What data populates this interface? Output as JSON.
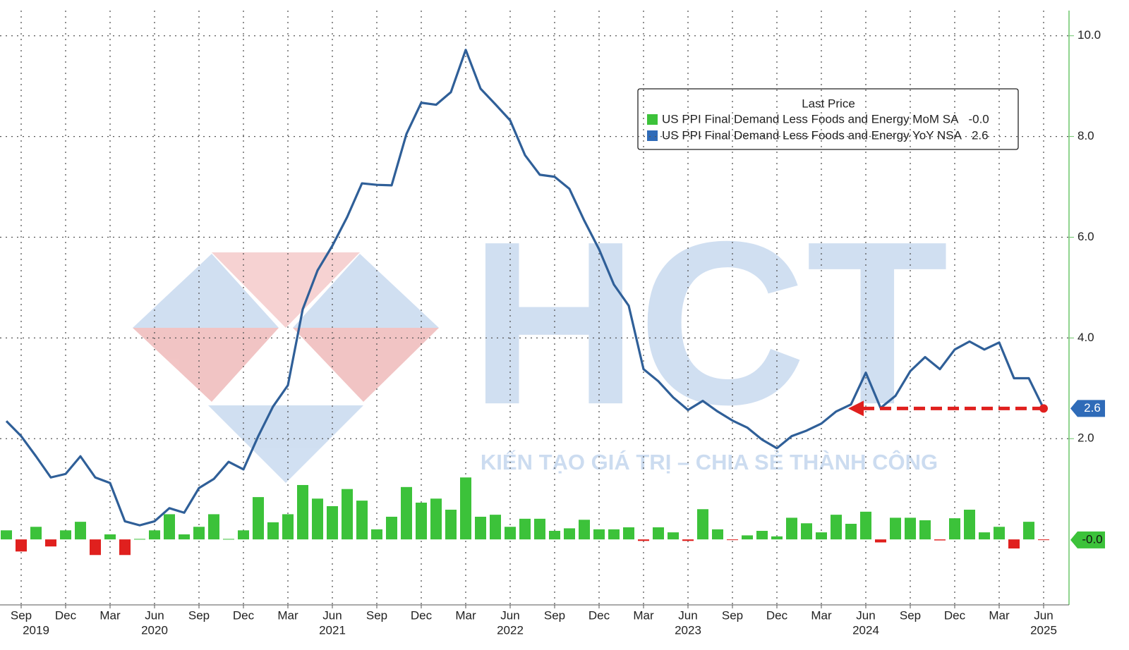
{
  "chart_data": {
    "type": "bar-line",
    "x": [
      "2019-08",
      "2019-09",
      "2019-10",
      "2019-11",
      "2019-12",
      "2020-01",
      "2020-02",
      "2020-03",
      "2020-04",
      "2020-05",
      "2020-06",
      "2020-07",
      "2020-08",
      "2020-09",
      "2020-10",
      "2020-11",
      "2020-12",
      "2021-01",
      "2021-02",
      "2021-03",
      "2021-04",
      "2021-05",
      "2021-06",
      "2021-07",
      "2021-08",
      "2021-09",
      "2021-10",
      "2021-11",
      "2021-12",
      "2022-01",
      "2022-02",
      "2022-03",
      "2022-04",
      "2022-05",
      "2022-06",
      "2022-07",
      "2022-08",
      "2022-09",
      "2022-10",
      "2022-11",
      "2022-12",
      "2023-01",
      "2023-02",
      "2023-03",
      "2023-04",
      "2023-05",
      "2023-06",
      "2023-07",
      "2023-08",
      "2023-09",
      "2023-10",
      "2023-11",
      "2023-12",
      "2024-01",
      "2024-02",
      "2024-03",
      "2024-04",
      "2024-05",
      "2024-06",
      "2024-07",
      "2024-08",
      "2024-09",
      "2024-10",
      "2024-11",
      "2024-12",
      "2025-01",
      "2025-02",
      "2025-03",
      "2025-04",
      "2025-05",
      "2025-06"
    ],
    "xticks": [
      {
        "value": "2019-09",
        "label": "Sep"
      },
      {
        "value": "2019-12",
        "label": "Dec"
      },
      {
        "value": "2020-03",
        "label": "Mar"
      },
      {
        "value": "2020-06",
        "label": "Jun"
      },
      {
        "value": "2020-09",
        "label": "Sep"
      },
      {
        "value": "2020-12",
        "label": "Dec"
      },
      {
        "value": "2021-03",
        "label": "Mar"
      },
      {
        "value": "2021-06",
        "label": "Jun"
      },
      {
        "value": "2021-09",
        "label": "Sep"
      },
      {
        "value": "2021-12",
        "label": "Dec"
      },
      {
        "value": "2022-03",
        "label": "Mar"
      },
      {
        "value": "2022-06",
        "label": "Jun"
      },
      {
        "value": "2022-09",
        "label": "Sep"
      },
      {
        "value": "2022-12",
        "label": "Dec"
      },
      {
        "value": "2023-03",
        "label": "Mar"
      },
      {
        "value": "2023-06",
        "label": "Jun"
      },
      {
        "value": "2023-09",
        "label": "Sep"
      },
      {
        "value": "2023-12",
        "label": "Dec"
      },
      {
        "value": "2024-03",
        "label": "Mar"
      },
      {
        "value": "2024-06",
        "label": "Jun"
      },
      {
        "value": "2024-09",
        "label": "Sep"
      },
      {
        "value": "2024-12",
        "label": "Dec"
      },
      {
        "value": "2025-03",
        "label": "Mar"
      },
      {
        "value": "2025-06",
        "label": "Jun"
      }
    ],
    "year_labels": [
      {
        "value": "2019-10",
        "label": "2019"
      },
      {
        "value": "2020-06",
        "label": "2020"
      },
      {
        "value": "2021-06",
        "label": "2021"
      },
      {
        "value": "2022-06",
        "label": "2022"
      },
      {
        "value": "2023-06",
        "label": "2023"
      },
      {
        "value": "2024-06",
        "label": "2024"
      },
      {
        "value": "2025-06",
        "label": "2025"
      }
    ],
    "ylim": [
      -1.3,
      10.5
    ],
    "yticks": [
      {
        "value": 2,
        "label": "2.0"
      },
      {
        "value": 4,
        "label": "4.0"
      },
      {
        "value": 6,
        "label": "6.0"
      },
      {
        "value": 8,
        "label": "8.0"
      },
      {
        "value": 10,
        "label": "10.0"
      }
    ],
    "grid": true,
    "legend": {
      "title": "Last Price",
      "position": "upper right"
    },
    "series": [
      {
        "name": "US PPI Final Demand Less Foods and Energy MoM SA",
        "kind": "bar",
        "color": "#3cc23a",
        "negative_color": "#e0201e",
        "badge_color": "#3cc23a",
        "last_label": "-0.0",
        "values": [
          0.18,
          -0.24,
          0.25,
          -0.14,
          0.18,
          0.35,
          -0.31,
          0.1,
          -0.31,
          0.01,
          0.18,
          0.5,
          0.1,
          0.25,
          0.5,
          0.01,
          0.18,
          0.84,
          0.34,
          0.5,
          1.08,
          0.81,
          0.66,
          1.0,
          0.77,
          0.2,
          0.45,
          1.04,
          0.73,
          0.81,
          0.59,
          1.23,
          0.45,
          0.49,
          0.25,
          0.41,
          0.41,
          0.17,
          0.22,
          0.39,
          0.2,
          0.2,
          0.24,
          -0.03,
          0.24,
          0.14,
          -0.03,
          0.6,
          0.2,
          -0.01,
          0.08,
          0.17,
          0.06,
          0.43,
          0.32,
          0.14,
          0.49,
          0.31,
          0.55,
          -0.06,
          0.43,
          0.43,
          0.38,
          -0.02,
          0.42,
          0.59,
          0.14,
          0.25,
          -0.18,
          0.35,
          -0.01
        ]
      },
      {
        "name": "US PPI Final Demand Less Foods and Energy YoY NSA",
        "kind": "line",
        "color": "#2f5f98",
        "badge_color": "#2f6bb8",
        "last_label": "2.6",
        "values": [
          2.35,
          2.05,
          1.65,
          1.23,
          1.3,
          1.65,
          1.23,
          1.12,
          0.36,
          0.28,
          0.36,
          0.62,
          0.53,
          1.02,
          1.2,
          1.54,
          1.39,
          2.05,
          2.64,
          3.06,
          4.57,
          5.34,
          5.83,
          6.4,
          7.07,
          7.04,
          7.03,
          8.05,
          8.67,
          8.63,
          8.88,
          9.72,
          8.95,
          8.64,
          8.32,
          7.63,
          7.24,
          7.2,
          6.96,
          6.33,
          5.76,
          5.06,
          4.64,
          3.38,
          3.14,
          2.82,
          2.57,
          2.75,
          2.54,
          2.36,
          2.22,
          1.98,
          1.81,
          2.05,
          2.16,
          2.3,
          2.54,
          2.68,
          3.31,
          2.61,
          2.85,
          3.34,
          3.62,
          3.38,
          3.77,
          3.93,
          3.77,
          3.91,
          3.2,
          3.2,
          2.6
        ]
      }
    ],
    "annotation_arrow": {
      "from": "2025-06",
      "to": "2024-05",
      "color": "#e0201e"
    },
    "watermark": {
      "text": "HCT",
      "tagline": "KIẾN TẠO GIÁ TRỊ – CHIA SẺ THÀNH CÔNG"
    }
  }
}
